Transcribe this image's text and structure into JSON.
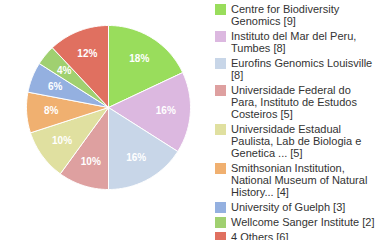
{
  "chart_data": {
    "type": "pie",
    "categories": [
      "Centre for Biodiversity Genomics [9]",
      "Instituto del Mar del Peru, Tumbes [8]",
      "Eurofins Genomics Louisville [8]",
      "Universidade Federal do Para, Instituto de Estudos Costeiros [5]",
      "Universidade Estadual Paulista, Lab de Biologia e Genetica ... [5]",
      "Smithsonian Institution, National Museum of Natural History... [4]",
      "University of Guelph [3]",
      "Wellcome Sanger Institute [2]",
      "4 Others [6]"
    ],
    "values": [
      18,
      16,
      16,
      10,
      10,
      8,
      6,
      4,
      12
    ],
    "value_labels": [
      "18%",
      "16%",
      "16%",
      "10%",
      "10%",
      "8%",
      "6%",
      "4%",
      "12%"
    ],
    "colors": [
      "#99dd5c",
      "#dcb8e0",
      "#c8d6e8",
      "#dea0a0",
      "#e0e0a0",
      "#f0b070",
      "#94b0e0",
      "#a0d070",
      "#e07060"
    ],
    "data_labels": true,
    "legend": "right"
  }
}
